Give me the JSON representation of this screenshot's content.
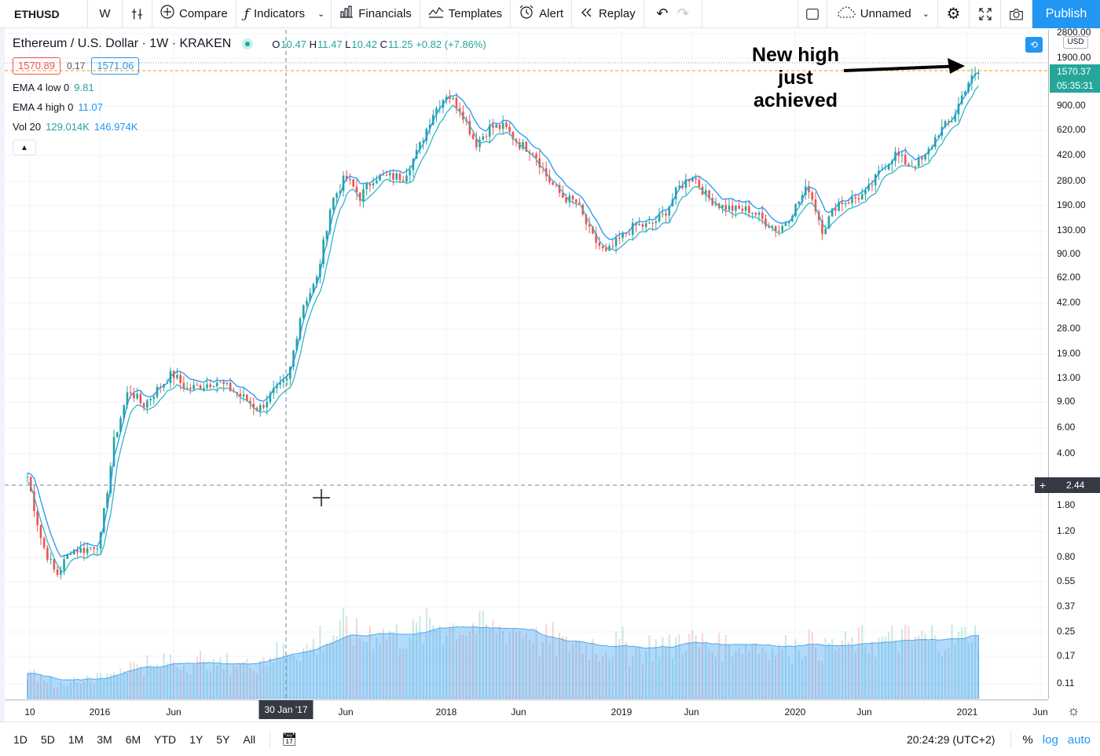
{
  "toolbar": {
    "symbol": "ETHUSD",
    "interval": "W",
    "compare": "Compare",
    "indicators": "Indicators",
    "financials": "Financials",
    "templates": "Templates",
    "alert": "Alert",
    "replay": "Replay",
    "layout_name": "Unnamed",
    "publish": "Publish"
  },
  "legend": {
    "title": "Ethereum / U.S. Dollar · 1W · KRAKEN",
    "o_label": "O",
    "o": "10.47",
    "h_label": "H",
    "h": "11.47",
    "l_label": "L",
    "l": "10.42",
    "c_label": "C",
    "c": "11.25",
    "change": "+0.82 (+7.86%)",
    "bid": "1570.89",
    "spread": "0.17",
    "ask": "1571.06",
    "ema_low_label": "EMA 4 low 0",
    "ema_low_value": "9.81",
    "ema_high_label": "EMA 4 high 0",
    "ema_high_value": "11.07",
    "vol_label": "Vol 20",
    "vol_value1": "129.014K",
    "vol_value2": "146.974K"
  },
  "annotation": {
    "line1": "New high",
    "line2": "just",
    "line3": "achieved"
  },
  "price_axis": {
    "currency": "USD",
    "labels": [
      "2800.00",
      "1900.00",
      "900.00",
      "620.00",
      "420.00",
      "280.00",
      "190.00",
      "130.00",
      "90.00",
      "62.00",
      "42.00",
      "28.00",
      "19.00",
      "13.00",
      "9.00",
      "6.00",
      "4.00",
      "1.80",
      "1.20",
      "0.80",
      "0.55",
      "0.37",
      "0.25",
      "0.17",
      "0.11"
    ],
    "last_price_tag": "1570.37",
    "countdown_tag": "05:35:31",
    "crosshair_price": "2.44"
  },
  "time_axis": {
    "labels": [
      "10",
      "2016",
      "Jun",
      "Jun",
      "2018",
      "Jun",
      "2019",
      "Jun",
      "2020",
      "Jun",
      "2021",
      "Jun"
    ],
    "crosshair_date": "30 Jan '17"
  },
  "bottom_bar": {
    "ranges": [
      "1D",
      "5D",
      "1M",
      "3M",
      "6M",
      "YTD",
      "1Y",
      "5Y",
      "All"
    ],
    "clock": "20:24:29 (UTC+2)",
    "percent": "%",
    "log": "log",
    "auto": "auto"
  },
  "colors": {
    "up": "#26a69a",
    "down": "#ef5350",
    "ema": "#2196f3",
    "ema_low": "#33b5c8",
    "volume_ma": "#4fa8e8",
    "price_line": "#ff9800",
    "accent": "#2196f3"
  },
  "chart_data": {
    "type": "candlestick",
    "scale": "log",
    "ylim": [
      0.1,
      2800
    ],
    "series": [
      {
        "name": "EMA 4 low 0",
        "color": "#33b5c8"
      },
      {
        "name": "EMA 4 high 0",
        "color": "#2196f3"
      },
      {
        "name": "Vol 20"
      }
    ],
    "x_ticks": [
      "10",
      "2016",
      "Jun",
      "Jun",
      "2018",
      "Jun",
      "2019",
      "Jun",
      "2020",
      "Jun",
      "2021",
      "Jun"
    ],
    "price_path": [
      [
        "2015-08",
        2.8
      ],
      [
        "2015-09",
        1.0
      ],
      [
        "2015-10",
        0.6
      ],
      [
        "2015-11",
        0.9
      ],
      [
        "2015-12",
        0.9
      ],
      [
        "2016-01",
        1.0
      ],
      [
        "2016-02",
        5.0
      ],
      [
        "2016-03",
        11.0
      ],
      [
        "2016-04",
        8.5
      ],
      [
        "2016-05",
        11.0
      ],
      [
        "2016-06",
        14.0
      ],
      [
        "2016-07",
        11.0
      ],
      [
        "2016-08",
        11.5
      ],
      [
        "2016-09",
        12.5
      ],
      [
        "2016-10",
        11.0
      ],
      [
        "2016-11",
        9.5
      ],
      [
        "2016-12",
        8.0
      ],
      [
        "2017-01",
        10.5
      ],
      [
        "2017-02",
        12.5
      ],
      [
        "2017-03",
        40.0
      ],
      [
        "2017-04",
        60.0
      ],
      [
        "2017-05",
        200.0
      ],
      [
        "2017-06",
        300.0
      ],
      [
        "2017-07",
        220.0
      ],
      [
        "2017-08",
        300.0
      ],
      [
        "2017-09",
        300.0
      ],
      [
        "2017-10",
        300.0
      ],
      [
        "2017-11",
        450.0
      ],
      [
        "2017-12",
        800.0
      ],
      [
        "2018-01",
        1100.0
      ],
      [
        "2018-02",
        850.0
      ],
      [
        "2018-03",
        500.0
      ],
      [
        "2018-04",
        650.0
      ],
      [
        "2018-05",
        650.0
      ],
      [
        "2018-06",
        500.0
      ],
      [
        "2018-07",
        450.0
      ],
      [
        "2018-08",
        290.0
      ],
      [
        "2018-09",
        220.0
      ],
      [
        "2018-10",
        200.0
      ],
      [
        "2018-11",
        120.0
      ],
      [
        "2018-12",
        90.0
      ],
      [
        "2019-01",
        115.0
      ],
      [
        "2019-02",
        140.0
      ],
      [
        "2019-03",
        140.0
      ],
      [
        "2019-04",
        165.0
      ],
      [
        "2019-05",
        250.0
      ],
      [
        "2019-06",
        310.0
      ],
      [
        "2019-07",
        220.0
      ],
      [
        "2019-08",
        190.0
      ],
      [
        "2019-09",
        180.0
      ],
      [
        "2019-10",
        180.0
      ],
      [
        "2019-11",
        150.0
      ],
      [
        "2019-12",
        130.0
      ],
      [
        "2020-01",
        180.0
      ],
      [
        "2020-02",
        260.0
      ],
      [
        "2020-03",
        130.0
      ],
      [
        "2020-04",
        200.0
      ],
      [
        "2020-05",
        210.0
      ],
      [
        "2020-06",
        230.0
      ],
      [
        "2020-07",
        330.0
      ],
      [
        "2020-08",
        430.0
      ],
      [
        "2020-09",
        360.0
      ],
      [
        "2020-10",
        390.0
      ],
      [
        "2020-11",
        600.0
      ],
      [
        "2020-12",
        740.0
      ],
      [
        "2021-01",
        1300.0
      ],
      [
        "2021-02",
        1570.37
      ]
    ]
  }
}
